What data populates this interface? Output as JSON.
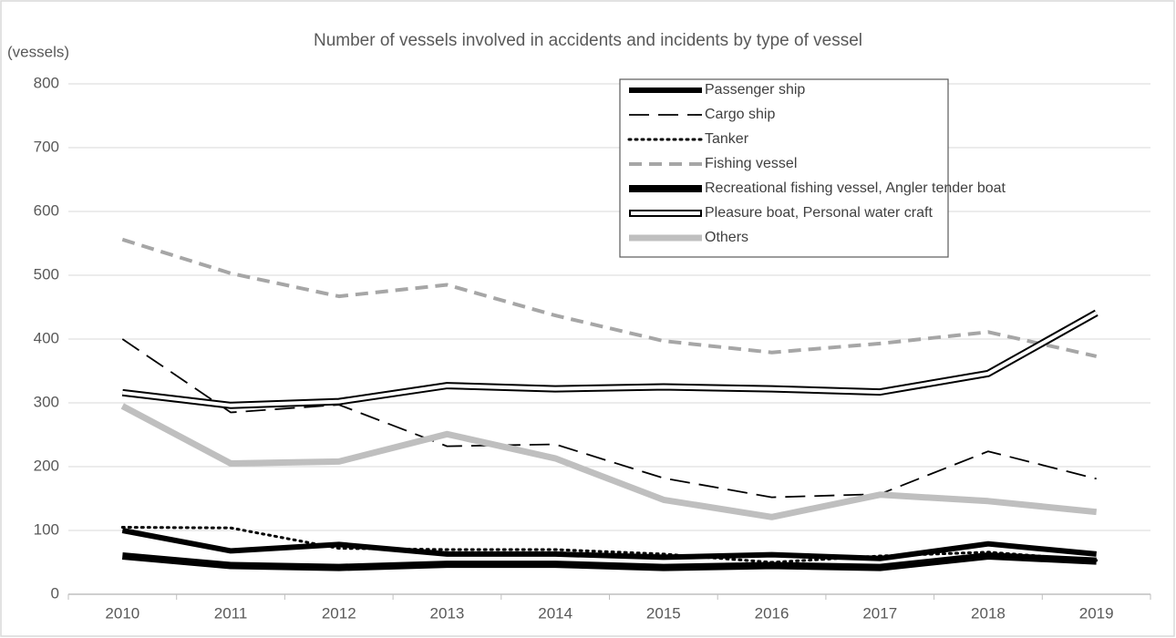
{
  "chart_data": {
    "type": "line",
    "title": "Number of vessels involved in accidents and incidents by type of vessel",
    "y_label": "(vessels)",
    "categories": [
      "2010",
      "2011",
      "2012",
      "2013",
      "2014",
      "2015",
      "2016",
      "2017",
      "2018",
      "2019"
    ],
    "series": [
      {
        "name": "Passenger ship",
        "color": "#000000",
        "values": [
          100,
          68,
          78,
          63,
          63,
          58,
          62,
          56,
          79,
          63
        ]
      },
      {
        "name": "Cargo ship",
        "color": "#000000",
        "values": [
          400,
          285,
          297,
          232,
          235,
          182,
          152,
          157,
          224,
          181
        ]
      },
      {
        "name": "Tanker",
        "color": "#000000",
        "values": [
          105,
          104,
          72,
          70,
          70,
          63,
          50,
          60,
          66,
          53
        ]
      },
      {
        "name": "Fishing vessel",
        "color": "#a6a6a6",
        "values": [
          556,
          503,
          467,
          485,
          437,
          397,
          379,
          393,
          411,
          373
        ]
      },
      {
        "name": "Recreational fishing vessel, Angler tender boat",
        "color": "#000000",
        "values": [
          60,
          45,
          42,
          47,
          47,
          42,
          45,
          42,
          60,
          52
        ]
      },
      {
        "name": "Pleasure boat, Personal water craft",
        "color": "#000000",
        "values": [
          316,
          296,
          302,
          327,
          322,
          325,
          322,
          317,
          346,
          441
        ]
      },
      {
        "name": "Others",
        "color": "#bfbfbf",
        "values": [
          295,
          205,
          208,
          251,
          213,
          148,
          121,
          156,
          146,
          129
        ]
      }
    ],
    "ylim": [
      0,
      800
    ],
    "yticks": [
      0,
      100,
      200,
      300,
      400,
      500,
      600,
      700,
      800
    ],
    "grid": true,
    "legend": "top-right"
  }
}
